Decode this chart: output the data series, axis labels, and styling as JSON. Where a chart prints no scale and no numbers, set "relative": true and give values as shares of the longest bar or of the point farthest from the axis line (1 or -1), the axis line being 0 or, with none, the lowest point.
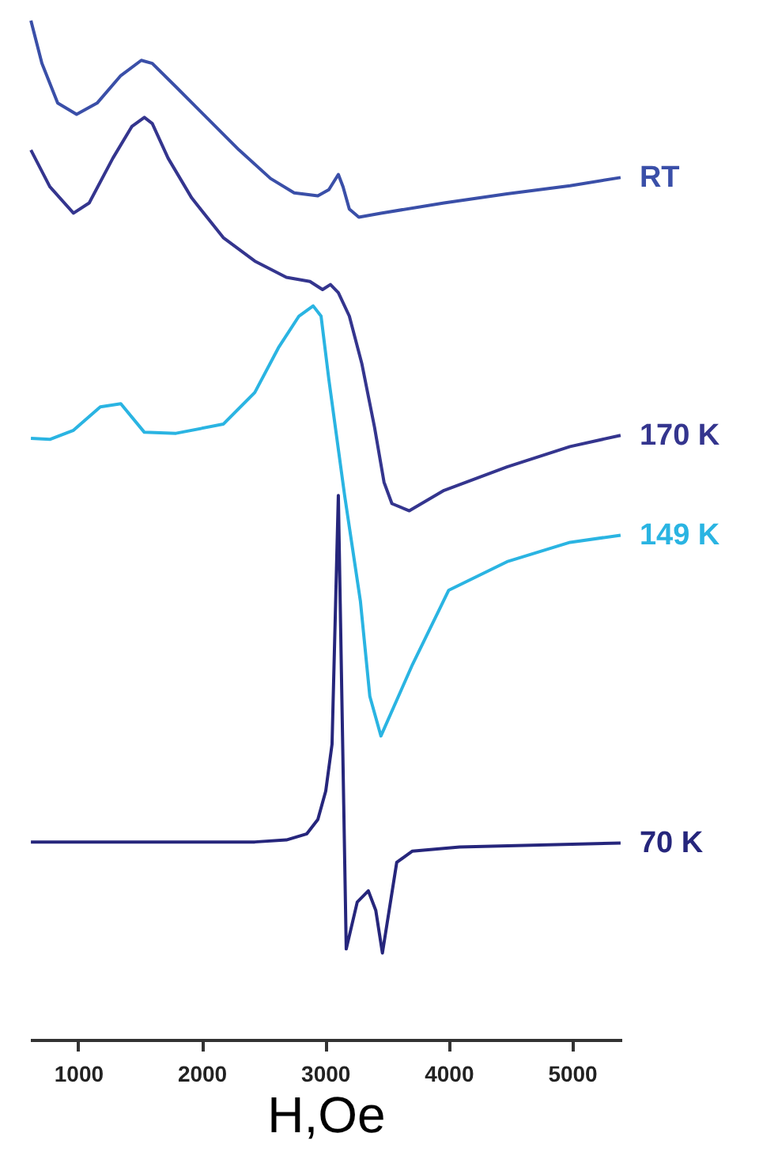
{
  "chart_data": {
    "type": "line",
    "relative": true,
    "xlabel": "H,Oe",
    "xlim": [
      610,
      5400
    ],
    "xticks": [
      1000,
      2000,
      3000,
      4000,
      5000
    ],
    "grid": false,
    "legend": false,
    "marker": "none",
    "line_style": "solid",
    "series": [
      {
        "name": "RT",
        "color": "#3a4fa8",
        "x": [
          617,
          706,
          834,
          987,
          1153,
          1345,
          1511,
          1600,
          1792,
          2047,
          2303,
          2558,
          2749,
          2941,
          3030,
          3107,
          3145,
          3196,
          3273,
          3452,
          3963,
          4473,
          4984,
          5393
        ],
        "values": [
          1.0,
          0.958,
          0.919,
          0.908,
          0.919,
          0.946,
          0.961,
          0.958,
          0.935,
          0.904,
          0.873,
          0.845,
          0.831,
          0.828,
          0.834,
          0.849,
          0.837,
          0.815,
          0.807,
          0.811,
          0.821,
          0.83,
          0.838,
          0.846
        ]
      },
      {
        "name": "170 K",
        "color": "#34358e",
        "x": [
          617,
          770,
          962,
          1089,
          1281,
          1434,
          1536,
          1600,
          1728,
          1919,
          2175,
          2430,
          2686,
          2877,
          2979,
          3043,
          3107,
          3196,
          3298,
          3400,
          3477,
          3541,
          3682,
          3963,
          4473,
          4984,
          5393
        ],
        "values": [
          0.873,
          0.837,
          0.811,
          0.821,
          0.865,
          0.896,
          0.905,
          0.899,
          0.865,
          0.826,
          0.787,
          0.764,
          0.748,
          0.744,
          0.736,
          0.741,
          0.733,
          0.71,
          0.663,
          0.601,
          0.547,
          0.526,
          0.519,
          0.539,
          0.562,
          0.582,
          0.593
        ]
      },
      {
        "name": "149 K",
        "color": "#2ab4e2",
        "x": [
          617,
          770,
          962,
          1179,
          1345,
          1536,
          1792,
          2175,
          2430,
          2622,
          2788,
          2903,
          2967,
          3030,
          3158,
          3286,
          3362,
          3452,
          3707,
          4001,
          4473,
          4984,
          5393
        ],
        "values": [
          0.59,
          0.589,
          0.598,
          0.621,
          0.624,
          0.596,
          0.595,
          0.604,
          0.635,
          0.679,
          0.71,
          0.72,
          0.71,
          0.648,
          0.534,
          0.43,
          0.337,
          0.298,
          0.368,
          0.441,
          0.469,
          0.488,
          0.495
        ]
      },
      {
        "name": "70 K",
        "color": "#26267c",
        "x": [
          617,
          2430,
          2686,
          2852,
          2941,
          3005,
          3056,
          3107,
          3171,
          3260,
          3350,
          3410,
          3464,
          3580,
          3707,
          4090,
          5393
        ],
        "values": [
          0.194,
          0.194,
          0.196,
          0.202,
          0.216,
          0.244,
          0.29,
          0.534,
          0.089,
          0.135,
          0.146,
          0.127,
          0.085,
          0.174,
          0.185,
          0.189,
          0.193
        ]
      }
    ]
  }
}
